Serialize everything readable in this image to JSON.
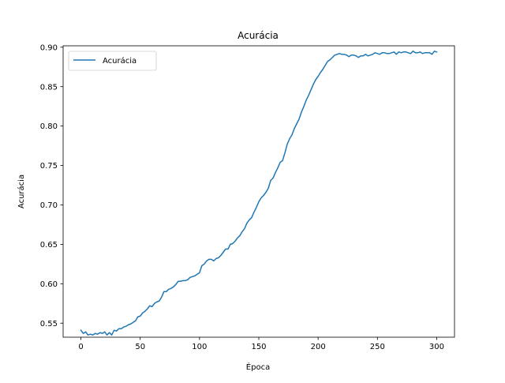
{
  "chart_data": {
    "type": "line",
    "title": "Acurácia",
    "xlabel": "Época",
    "ylabel": "Acurácia",
    "xlim": [
      -15,
      315
    ],
    "ylim": [
      0.5322,
      0.9018
    ],
    "xticks": [
      0,
      50,
      100,
      150,
      200,
      250,
      300
    ],
    "xtick_labels": [
      "0",
      "50",
      "100",
      "150",
      "200",
      "250",
      "300"
    ],
    "yticks": [
      0.55,
      0.6,
      0.65,
      0.7,
      0.75,
      0.8,
      0.85,
      0.9
    ],
    "ytick_labels": [
      "0.55",
      "0.60",
      "0.65",
      "0.70",
      "0.75",
      "0.80",
      "0.85",
      "0.90"
    ],
    "grid": false,
    "legend": {
      "position": "top-left"
    },
    "series": [
      {
        "name": "Acurácia",
        "color": "#1f77b4",
        "x": [
          0,
          2,
          4,
          6,
          8,
          10,
          12,
          14,
          16,
          18,
          20,
          22,
          24,
          26,
          28,
          30,
          32,
          34,
          36,
          38,
          40,
          42,
          44,
          46,
          48,
          50,
          52,
          54,
          56,
          58,
          60,
          62,
          64,
          66,
          68,
          70,
          72,
          74,
          76,
          78,
          80,
          82,
          84,
          86,
          88,
          90,
          92,
          94,
          96,
          98,
          100,
          102,
          104,
          106,
          108,
          110,
          112,
          114,
          116,
          118,
          120,
          122,
          124,
          126,
          128,
          130,
          132,
          134,
          136,
          138,
          140,
          142,
          144,
          146,
          148,
          150,
          152,
          154,
          156,
          158,
          160,
          162,
          164,
          166,
          168,
          170,
          172,
          174,
          176,
          178,
          180,
          182,
          184,
          186,
          188,
          190,
          192,
          194,
          196,
          198,
          200,
          202,
          204,
          206,
          208,
          210,
          212,
          214,
          216,
          218,
          220,
          222,
          224,
          226,
          228,
          230,
          232,
          234,
          236,
          238,
          240,
          242,
          244,
          246,
          248,
          250,
          252,
          254,
          256,
          258,
          260,
          262,
          264,
          266,
          268,
          270,
          272,
          274,
          276,
          278,
          280,
          282,
          284,
          286,
          288,
          290,
          292,
          294,
          296,
          298,
          300
        ],
        "values": [
          0.541,
          0.537,
          0.539,
          0.535,
          0.536,
          0.535,
          0.537,
          0.536,
          0.538,
          0.537,
          0.539,
          0.535,
          0.538,
          0.535,
          0.541,
          0.54,
          0.543,
          0.543,
          0.545,
          0.546,
          0.548,
          0.549,
          0.551,
          0.553,
          0.558,
          0.559,
          0.563,
          0.565,
          0.568,
          0.572,
          0.571,
          0.575,
          0.577,
          0.578,
          0.583,
          0.59,
          0.59,
          0.593,
          0.594,
          0.596,
          0.599,
          0.603,
          0.603,
          0.604,
          0.604,
          0.605,
          0.608,
          0.609,
          0.61,
          0.612,
          0.614,
          0.623,
          0.625,
          0.629,
          0.631,
          0.631,
          0.629,
          0.632,
          0.633,
          0.636,
          0.64,
          0.644,
          0.644,
          0.65,
          0.651,
          0.654,
          0.658,
          0.661,
          0.666,
          0.67,
          0.677,
          0.681,
          0.684,
          0.691,
          0.697,
          0.704,
          0.709,
          0.712,
          0.716,
          0.721,
          0.731,
          0.734,
          0.741,
          0.747,
          0.754,
          0.756,
          0.766,
          0.777,
          0.784,
          0.789,
          0.797,
          0.803,
          0.809,
          0.818,
          0.825,
          0.833,
          0.839,
          0.846,
          0.853,
          0.859,
          0.863,
          0.868,
          0.872,
          0.877,
          0.882,
          0.884,
          0.887,
          0.89,
          0.891,
          0.892,
          0.891,
          0.891,
          0.89,
          0.888,
          0.89,
          0.89,
          0.889,
          0.887,
          0.889,
          0.889,
          0.891,
          0.889,
          0.89,
          0.891,
          0.893,
          0.892,
          0.891,
          0.893,
          0.893,
          0.892,
          0.892,
          0.893,
          0.894,
          0.891,
          0.894,
          0.893,
          0.894,
          0.894,
          0.893,
          0.892,
          0.895,
          0.893,
          0.893,
          0.894,
          0.892,
          0.893,
          0.893,
          0.893,
          0.891,
          0.895,
          0.894
        ]
      }
    ]
  }
}
